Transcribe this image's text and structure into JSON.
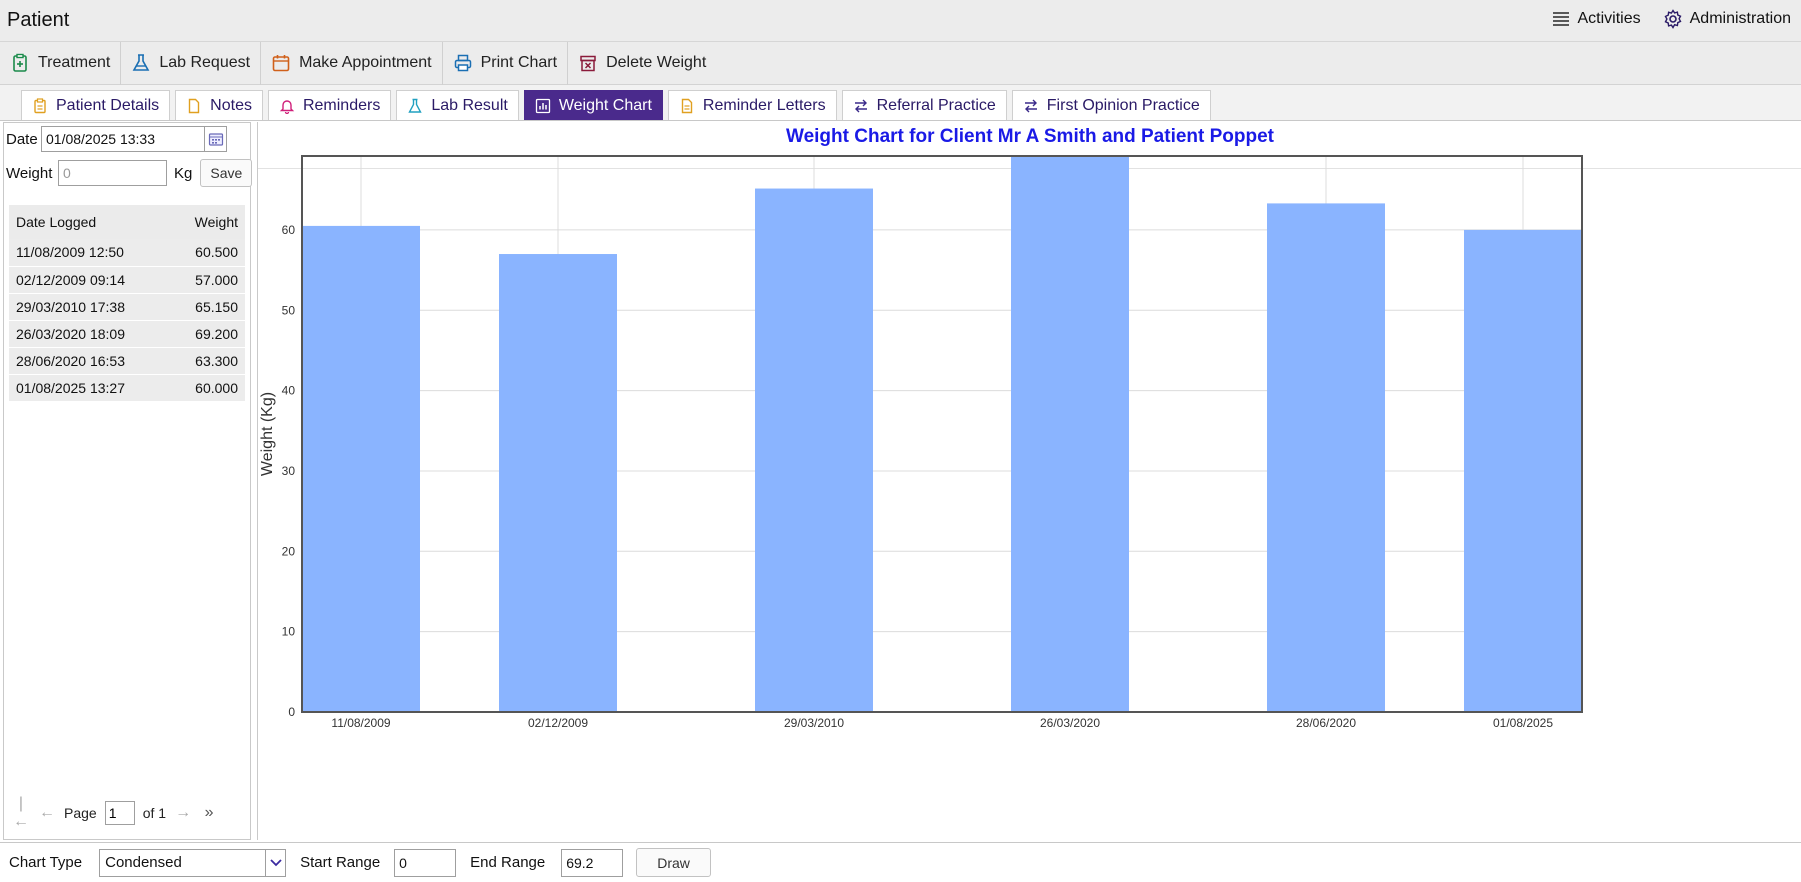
{
  "window": {
    "title": "Patient"
  },
  "top_links": [
    {
      "label": "Activities",
      "icon": "list-icon"
    },
    {
      "label": "Administration",
      "icon": "gear-icon"
    }
  ],
  "toolbar": [
    {
      "label": "Treatment",
      "icon": "clipboard-plus-icon",
      "color": "#1a8a4a"
    },
    {
      "label": "Lab Request",
      "icon": "flask-icon",
      "color": "#1a6fb3"
    },
    {
      "label": "Make Appointment",
      "icon": "calendar-icon",
      "color": "#d0601a"
    },
    {
      "label": "Print Chart",
      "icon": "printer-icon",
      "color": "#1a6fb3"
    },
    {
      "label": "Delete Weight",
      "icon": "delete-box-icon",
      "color": "#8a1a3a"
    }
  ],
  "tabs": [
    {
      "label": "Patient Details",
      "icon": "clipboard-icon",
      "color": "#e0a020",
      "active": false
    },
    {
      "label": "Notes",
      "icon": "note-icon",
      "color": "#e0a020",
      "active": false
    },
    {
      "label": "Reminders",
      "icon": "bell-icon",
      "color": "#d0207a",
      "active": false
    },
    {
      "label": "Lab Result",
      "icon": "flask-icon",
      "color": "#20a0c0",
      "active": false
    },
    {
      "label": "Weight Chart",
      "icon": "bar-chart-icon",
      "color": "#ffffff",
      "active": true
    },
    {
      "label": "Reminder Letters",
      "icon": "document-icon",
      "color": "#e0a020",
      "active": false
    },
    {
      "label": "Referral Practice",
      "icon": "swap-icon",
      "color": "#3a2a8a",
      "active": false
    },
    {
      "label": "First Opinion Practice",
      "icon": "swap-icon",
      "color": "#3a2a8a",
      "active": false
    }
  ],
  "form": {
    "date_label": "Date",
    "date_value": "01/08/2025 13:33",
    "weight_label": "Weight",
    "weight_placeholder": "0",
    "unit": "Kg",
    "save_label": "Save"
  },
  "weight_table": {
    "headers": [
      "Date Logged",
      "Weight"
    ],
    "rows": [
      [
        "11/08/2009 12:50",
        "60.500"
      ],
      [
        "02/12/2009 09:14",
        "57.000"
      ],
      [
        "29/03/2010 17:38",
        "65.150"
      ],
      [
        "26/03/2020 18:09",
        "69.200"
      ],
      [
        "28/06/2020 16:53",
        "63.300"
      ],
      [
        "01/08/2025 13:27",
        "60.000"
      ]
    ]
  },
  "pager": {
    "page_label": "Page",
    "page_value": "1",
    "of_label": "of 1"
  },
  "chart_data": {
    "type": "bar",
    "title": "Weight Chart for Client Mr A Smith and Patient Poppet",
    "categories": [
      "11/08/2009",
      "02/12/2009",
      "29/03/2010",
      "26/03/2020",
      "28/06/2020",
      "01/08/2025"
    ],
    "values": [
      60.5,
      57.0,
      65.15,
      69.2,
      63.3,
      60.0
    ],
    "ylabel": "Weight (Kg)",
    "xlabel": "",
    "ylim": [
      0,
      69.2
    ],
    "yticks": [
      0,
      10,
      20,
      30,
      40,
      50,
      60
    ],
    "grid": true,
    "bar_color": "#8ab4ff"
  },
  "bottom": {
    "chart_type_label": "Chart Type",
    "chart_type_value": "Condensed",
    "start_range_label": "Start Range",
    "start_range_value": "0",
    "end_range_label": "End Range",
    "end_range_value": "69.2",
    "draw_label": "Draw"
  }
}
